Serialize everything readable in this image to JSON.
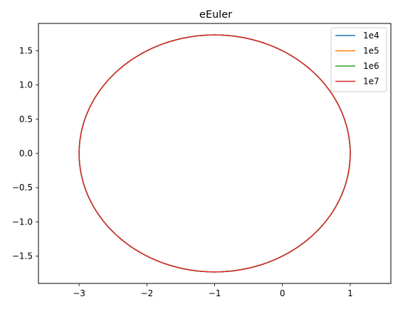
{
  "chart_data": {
    "type": "line",
    "title": "eEuler",
    "xlabel": "",
    "ylabel": "",
    "xlim": [
      -3.6,
      1.6
    ],
    "ylim": [
      -1.9,
      1.9
    ],
    "xticks": [
      -3,
      -2,
      -1,
      0,
      1
    ],
    "yticks": [
      -1.5,
      -1.0,
      -0.5,
      0.0,
      0.5,
      1.0,
      1.5
    ],
    "xtick_labels": [
      "−3",
      "−2",
      "−1",
      "0",
      "1"
    ],
    "ytick_labels": [
      "−1.5",
      "−1.0",
      "−0.5",
      "0.0",
      "0.5",
      "1.0",
      "1.5"
    ],
    "grid": false,
    "legend_position": "top-right",
    "series": [
      {
        "name": "1e4",
        "color": "#1f77b4",
        "center": [
          -1.0,
          0.0
        ],
        "x_radius": 2.0,
        "y_radius": 1.732
      },
      {
        "name": "1e5",
        "color": "#ff7f0e",
        "center": [
          -1.0,
          0.0
        ],
        "x_radius": 2.0,
        "y_radius": 1.732
      },
      {
        "name": "1e6",
        "color": "#2ca02c",
        "center": [
          -1.0,
          0.0
        ],
        "x_radius": 2.0,
        "y_radius": 1.732
      },
      {
        "name": "1e7",
        "color": "#d62728",
        "center": [
          -1.0,
          0.0
        ],
        "x_radius": 2.0,
        "y_radius": 1.732
      }
    ]
  }
}
